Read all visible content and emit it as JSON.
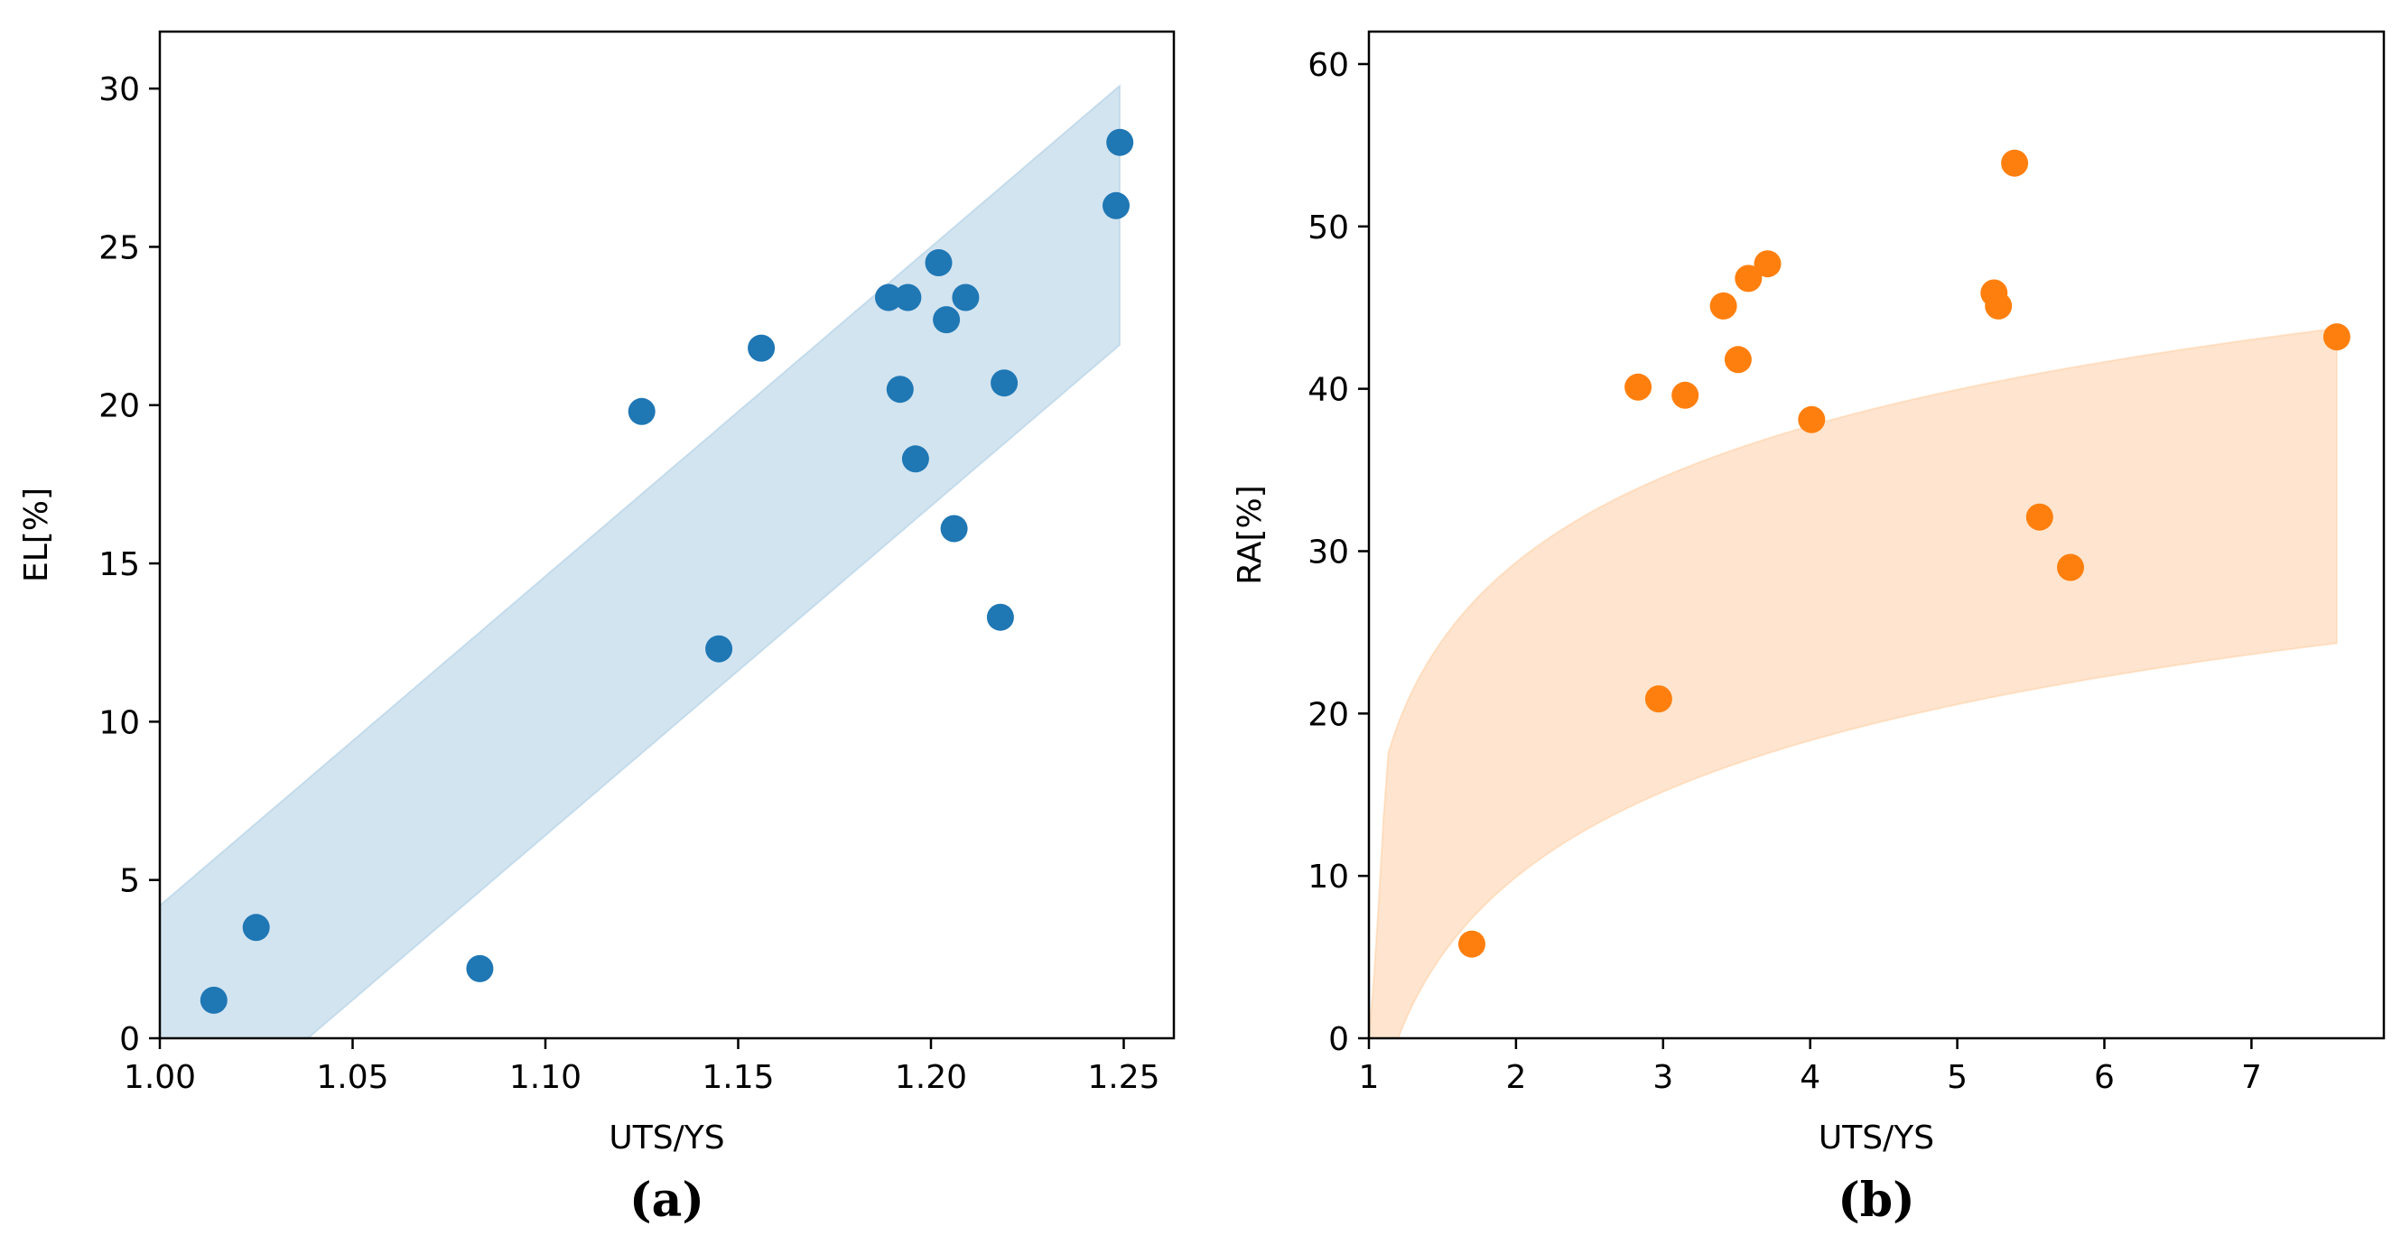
{
  "chart_data": [
    {
      "type": "scatter",
      "panel_label": "(a)",
      "xlabel": "UTS/YS",
      "ylabel": "EL[%]",
      "xlim": [
        1.0,
        1.263
      ],
      "ylim": [
        0,
        31.8
      ],
      "xticks": [
        1.0,
        1.05,
        1.1,
        1.15,
        1.2,
        1.25
      ],
      "xtick_labels": [
        "1.00",
        "1.05",
        "1.10",
        "1.15",
        "1.20",
        "1.25"
      ],
      "yticks": [
        0,
        5,
        10,
        15,
        20,
        25,
        30
      ],
      "ytick_labels": [
        "0",
        "5",
        "10",
        "15",
        "20",
        "25",
        "30"
      ],
      "point_color": "#1f77b4",
      "band_color": "#1f77b4",
      "band_opacity": 0.2,
      "band": {
        "type": "linear",
        "x_start": 1.0,
        "x_end": 1.249,
        "upper_start": 4.2,
        "upper_end": 30.1,
        "lower_start": -4.0,
        "lower_end": 21.9
      },
      "x": [
        1.014,
        1.025,
        1.083,
        1.125,
        1.145,
        1.156,
        1.189,
        1.192,
        1.194,
        1.196,
        1.202,
        1.204,
        1.206,
        1.209,
        1.218,
        1.219,
        1.248,
        1.249
      ],
      "y": [
        1.2,
        3.5,
        2.2,
        19.8,
        12.3,
        21.8,
        23.4,
        20.5,
        23.4,
        18.3,
        24.5,
        22.7,
        16.1,
        23.4,
        13.3,
        20.7,
        26.3,
        28.3
      ]
    },
    {
      "type": "scatter",
      "panel_label": "(b)",
      "xlabel": "UTS/YS",
      "ylabel": "RA[%]",
      "xlim": [
        1.0,
        7.9
      ],
      "ylim": [
        0,
        62
      ],
      "xticks": [
        1,
        2,
        3,
        4,
        5,
        6,
        7
      ],
      "xtick_labels": [
        "1",
        "2",
        "3",
        "4",
        "5",
        "6",
        "7"
      ],
      "yticks": [
        0,
        10,
        20,
        30,
        40,
        50,
        60
      ],
      "ytick_labels": [
        "0",
        "10",
        "20",
        "30",
        "40",
        "50",
        "60"
      ],
      "point_color": "#ff7f0e",
      "band_color": "#ff7f0e",
      "band_opacity": 0.2,
      "band": {
        "type": "logarithmic",
        "x_start": 1.0,
        "x_end": 7.58,
        "upper_at_x1": 9.0,
        "upper_coeff": 24.4,
        "lower_at_x1": -10.4,
        "lower_coeff": 24.4
      },
      "x": [
        1.7,
        2.83,
        2.97,
        3.15,
        3.41,
        3.51,
        3.58,
        3.71,
        4.01,
        5.25,
        5.28,
        5.39,
        5.56,
        5.77,
        7.58
      ],
      "y": [
        5.8,
        40.1,
        20.9,
        39.6,
        45.1,
        41.8,
        46.8,
        47.7,
        38.1,
        45.9,
        45.1,
        53.9,
        32.1,
        29.0,
        43.2
      ]
    }
  ]
}
